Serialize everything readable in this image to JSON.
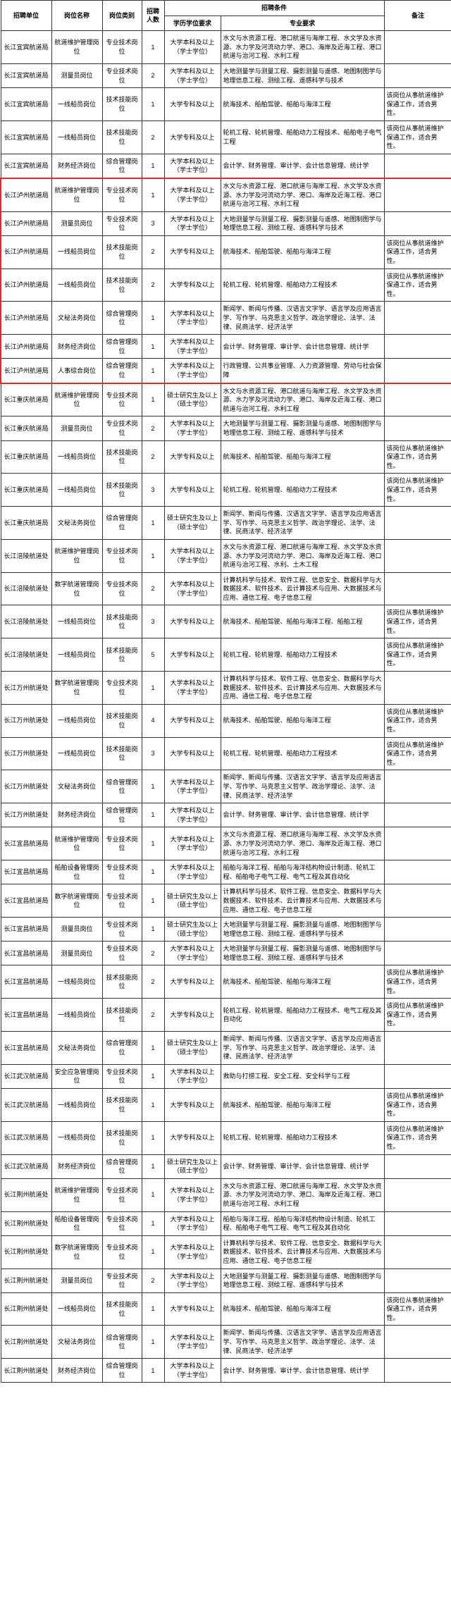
{
  "headers": {
    "unit": "招聘单位",
    "name": "岗位名称",
    "category": "岗位类别",
    "count": "招聘人数",
    "conditions": "招聘条件",
    "edu": "学历学位要求",
    "req": "专业要求",
    "remark": "备注"
  },
  "common": {
    "edu_bachelor": "大学本科及以上（学士学位）",
    "edu_college": "大学专科及以上",
    "edu_master": "硕士研究生及以上（硕士学位）",
    "remark_male": "该岗位从事航道维护保通工作，适合男性。"
  },
  "rows": [
    {
      "unit": "长江宜宾航道局",
      "name": "航道维护管理岗位",
      "cat": "专业技术岗位",
      "count": "1",
      "edu": "bachelor",
      "req": "水文与水资源工程、港口航道与海岸工程、水文学及水资源、水力学及河流动力学、港口、海岸及近海工程、港口航道与治河工程、水利工程",
      "remark": ""
    },
    {
      "unit": "长江宜宾航道局",
      "name": "测量员岗位",
      "cat": "专业技术岗位",
      "count": "2",
      "edu": "bachelor",
      "req": "大地测量学与测量工程、摄影测量与遥感、地图制图学与地理信息工程、测绘工程、遥感科学与技术",
      "remark": ""
    },
    {
      "unit": "长江宜宾航道局",
      "name": "一线船员岗位",
      "cat": "技术技能岗位",
      "count": "1",
      "edu": "college",
      "req": "航海技术、船舶驾驶、船舶与海洋工程",
      "remark": "male"
    },
    {
      "unit": "长江宜宾航道局",
      "name": "一线船员岗位",
      "cat": "技术技能岗位",
      "count": "2",
      "edu": "college",
      "req": "轮机工程、轮机管理、船舶动力工程技术、船舶电子电气工程",
      "remark": "male"
    },
    {
      "unit": "长江宜宾航道局",
      "name": "财务经济岗位",
      "cat": "综合管理岗位",
      "count": "1",
      "edu": "bachelor",
      "req": "会计学、财务管理、审计学、会计信息管理、统计学",
      "remark": ""
    },
    {
      "unit": "长江泸州航道局",
      "name": "航道维护管理岗位",
      "cat": "专业技术岗位",
      "count": "1",
      "edu": "bachelor",
      "req": "水文与水资源工程、港口航道与海岸工程、水文学及水资源、水力学及河流动力学、港口、海岸及近海工程、港口航道与治河工程、水利工程",
      "remark": "",
      "hl": "top"
    },
    {
      "unit": "长江泸州航道局",
      "name": "测量员岗位",
      "cat": "专业技术岗位",
      "count": "3",
      "edu": "bachelor",
      "req": "大地测量学与测量工程、摄影测量与遥感、地图制图学与地理信息工程、测绘工程、遥感科学与技术",
      "remark": "",
      "hl": "mid"
    },
    {
      "unit": "长江泸州航道局",
      "name": "一线船员岗位",
      "cat": "技术技能岗位",
      "count": "2",
      "edu": "college",
      "req": "航海技术、船舶驾驶、船舶与海洋工程",
      "remark": "male",
      "hl": "mid"
    },
    {
      "unit": "长江泸州航道局",
      "name": "一线船员岗位",
      "cat": "技术技能岗位",
      "count": "2",
      "edu": "college",
      "req": "轮机工程、轮机管理、船舶动力工程技术",
      "remark": "male",
      "hl": "mid"
    },
    {
      "unit": "长江泸州航道局",
      "name": "文秘法务岗位",
      "cat": "综合管理岗位",
      "count": "1",
      "edu": "bachelor",
      "req": "新闻学、新闻与传播、汉语言文字学、语言学及应用语言学、写作学、马克思主义哲学、政治学理论、法学、法律、民商法学、经济法学",
      "remark": "",
      "hl": "mid"
    },
    {
      "unit": "长江泸州航道局",
      "name": "财务经济岗位",
      "cat": "综合管理岗位",
      "count": "1",
      "edu": "bachelor",
      "req": "会计学、财务管理、审计学、会计信息管理、统计学",
      "remark": "",
      "hl": "mid"
    },
    {
      "unit": "长江泸州航道局",
      "name": "人事综合岗位",
      "cat": "综合管理岗位",
      "count": "1",
      "edu": "bachelor",
      "req": "行政管理、公共事业管理、人力资源管理、劳动与社会保障",
      "remark": "",
      "hl": "bot"
    },
    {
      "unit": "长江重庆航道局",
      "name": "航道维护管理岗位",
      "cat": "专业技术岗位",
      "count": "1",
      "edu": "master",
      "req": "水文与水资源工程、港口航道与海岸工程、水文学及水资源、水力学及河流动力学、港口、海岸及近海工程、港口航道与治河工程、水利工程",
      "remark": ""
    },
    {
      "unit": "长江重庆航道局",
      "name": "测量员岗位",
      "cat": "专业技术岗位",
      "count": "2",
      "edu": "bachelor",
      "req": "大地测量学与测量工程、摄影测量与遥感、地图制图学与地理信息工程、测绘工程、遥感科学与技术",
      "remark": ""
    },
    {
      "unit": "长江重庆航道局",
      "name": "一线船员岗位",
      "cat": "技术技能岗位",
      "count": "2",
      "edu": "college",
      "req": "航海技术、船舶驾驶、船舶与海洋工程",
      "remark": "male"
    },
    {
      "unit": "长江重庆航道局",
      "name": "一线船员岗位",
      "cat": "技术技能岗位",
      "count": "3",
      "edu": "college",
      "req": "轮机工程、轮机管理、船舶动力工程技术",
      "remark": "male"
    },
    {
      "unit": "长江重庆航道局",
      "name": "文秘法务岗位",
      "cat": "综合管理岗位",
      "count": "1",
      "edu": "master",
      "req": "新闻学、新闻与传播、汉语言文字学、语言学及应用语言学、写作学、马克思主义哲学、政治学理论、法学、法律、民商法学、经济法学",
      "remark": ""
    },
    {
      "unit": "长江涪陵航道处",
      "name": "航道维护管理岗位",
      "cat": "专业技术岗位",
      "count": "1",
      "edu": "bachelor",
      "req": "水文与水资源工程、港口航道与海岸工程、水文学及水资源、水力学及河流动力学、港口、海岸及近海工程、港口航道与治河工程、水利、土木工程",
      "remark": ""
    },
    {
      "unit": "长江涪陵航道处",
      "name": "数字航道管理岗位",
      "cat": "专业技术岗位",
      "count": "2",
      "edu": "bachelor",
      "req": "计算机科学与技术、软件工程、信息安全、数据科学与大数据技术、软件技术、云计算技术与应用、大数据技术与应用、通信工程、电子信息工程",
      "remark": ""
    },
    {
      "unit": "长江涪陵航道处",
      "name": "一线船员岗位",
      "cat": "技术技能岗位",
      "count": "3",
      "edu": "college",
      "req": "航海技术、船舶驾驶、船舶与海洋工程、船舶工程",
      "remark": "male"
    },
    {
      "unit": "长江涪陵航道处",
      "name": "一线船员岗位",
      "cat": "技术技能岗位",
      "count": "5",
      "edu": "college",
      "req": "轮机工程、轮机管理、船舶动力工程技术",
      "remark": "male"
    },
    {
      "unit": "长江万州航道处",
      "name": "数字航道管理岗位",
      "cat": "专业技术岗位",
      "count": "1",
      "edu": "bachelor",
      "req": "计算机科学与技术、软件工程、信息安全、数据科学与大数据技术、软件技术、云计算技术与应用、大数据技术与应用、通信工程、电子信息工程",
      "remark": ""
    },
    {
      "unit": "长江万州航道处",
      "name": "一线船员岗位",
      "cat": "技术技能岗位",
      "count": "4",
      "edu": "college",
      "req": "航海技术、船舶驾驶、船舶与海洋工程",
      "remark": "male"
    },
    {
      "unit": "长江万州航道处",
      "name": "一线船员岗位",
      "cat": "技术技能岗位",
      "count": "3",
      "edu": "college",
      "req": "轮机工程、轮机管理、船舶动力工程技术",
      "remark": "male"
    },
    {
      "unit": "长江万州航道处",
      "name": "文秘法务岗位",
      "cat": "综合管理岗位",
      "count": "1",
      "edu": "bachelor",
      "req": "新闻学、新闻与传播、汉语言文字学、语言学及应用语言学、写作学、马克思主义哲学、政治学理论、法学、法律、民商法学、经济法学",
      "remark": ""
    },
    {
      "unit": "长江万州航道处",
      "name": "财务经济岗位",
      "cat": "综合管理岗位",
      "count": "1",
      "edu": "bachelor",
      "req": "会计学、财务管理、审计学、会计信息管理、统计学",
      "remark": ""
    },
    {
      "unit": "长江宜昌航道局",
      "name": "航道维护管理岗位",
      "cat": "专业技术岗位",
      "count": "1",
      "edu": "bachelor",
      "req": "水文与水资源工程、港口航道与海岸工程、水文学及水资源、水力学及河流动力学、港口、海岸及近海工程、港口航道与治河工程、水利工程",
      "remark": ""
    },
    {
      "unit": "长江宜昌航道局",
      "name": "船舶设备管理岗位",
      "cat": "专业技术岗位",
      "count": "1",
      "edu": "bachelor",
      "req": "船舶与海洋工程、船舶与海洋结构物设计制造、轮机工程、船舶电子电气工程、电气工程及其自动化",
      "remark": ""
    },
    {
      "unit": "长江宜昌航道局",
      "name": "数字航道管理岗位",
      "cat": "专业技术岗位",
      "count": "1",
      "edu": "master",
      "req": "计算机科学与技术、软件工程、信息安全、数据科学与大数据技术、软件技术、云计算技术与应用、大数据技术与应用、通信工程、电子信息工程",
      "remark": ""
    },
    {
      "unit": "长江宜昌航道局",
      "name": "测量员岗位",
      "cat": "专业技术岗位",
      "count": "1",
      "edu": "master",
      "req": "大地测量学与测量工程、摄影测量与遥感、地图制图学与地理信息工程、测绘工程、遥感科学与技术",
      "remark": ""
    },
    {
      "unit": "长江宜昌航道局",
      "name": "测量员岗位",
      "cat": "专业技术岗位",
      "count": "2",
      "edu": "bachelor",
      "req": "大地测量学与测量工程、摄影测量与遥感、地图制图学与地理信息工程、测绘工程、遥感科学与技术",
      "remark": ""
    },
    {
      "unit": "长江宜昌航道局",
      "name": "一线船员岗位",
      "cat": "技术技能岗位",
      "count": "2",
      "edu": "college",
      "req": "航海技术、船舶驾驶、船舶与海洋工程",
      "remark": "male"
    },
    {
      "unit": "长江宜昌航道局",
      "name": "一线船员岗位",
      "cat": "技术技能岗位",
      "count": "2",
      "edu": "college",
      "req": "轮机工程、轮机管理、船舶动力工程技术、电气工程及其自动化",
      "remark": "male"
    },
    {
      "unit": "长江宜昌航道局",
      "name": "文秘法务岗位",
      "cat": "综合管理岗位",
      "count": "1",
      "edu": "master",
      "req": "新闻学、新闻与传播、汉语言文字学、语言学及应用语言学、写作学、马克思主义哲学、政治学理论、法学、法律、民商法学、经济法学",
      "remark": ""
    },
    {
      "unit": "长江武汉航道局",
      "name": "安全应急管理岗位",
      "cat": "专业技术岗位",
      "count": "1",
      "edu": "bachelor",
      "req": "救助与打捞工程、安全工程、安全科学与工程",
      "remark": ""
    },
    {
      "unit": "长江武汉航道局",
      "name": "一线船员岗位",
      "cat": "技术技能岗位",
      "count": "1",
      "edu": "college",
      "req": "航海技术、船舶驾驶、船舶与海洋工程",
      "remark": "male"
    },
    {
      "unit": "长江武汉航道局",
      "name": "一线船员岗位",
      "cat": "技术技能岗位",
      "count": "1",
      "edu": "college",
      "req": "轮机工程、轮机管理、船舶动力工程技术",
      "remark": "male"
    },
    {
      "unit": "长江武汉航道局",
      "name": "财务经济岗位",
      "cat": "综合管理岗位",
      "count": "1",
      "edu": "master",
      "req": "会计学、财务管理、审计学、会计信息管理、统计学",
      "remark": ""
    },
    {
      "unit": "长江荆州航道处",
      "name": "航道维护管理岗位",
      "cat": "专业技术岗位",
      "count": "1",
      "edu": "bachelor",
      "req": "水文与水资源工程、港口航道与海岸工程、水文学及水资源、水力学及河流动力学、港口、海岸及近海工程、港口航道与治河工程、水利工程",
      "remark": ""
    },
    {
      "unit": "长江荆州航道处",
      "name": "船舶设备管理岗位",
      "cat": "专业技术岗位",
      "count": "1",
      "edu": "bachelor",
      "req": "船舶与海洋工程、船舶与海洋结构物设计制造、轮机工程、船舶电子电气工程、电气工程及其自动化",
      "remark": ""
    },
    {
      "unit": "长江荆州航道处",
      "name": "数字航道管理岗位",
      "cat": "专业技术岗位",
      "count": "1",
      "edu": "bachelor",
      "req": "计算机科学与技术、软件工程、信息安全、数据科学与大数据技术、软件技术、云计算技术与应用、大数据技术与应用、通信工程、电子信息工程",
      "remark": ""
    },
    {
      "unit": "长江荆州航道处",
      "name": "测量员岗位",
      "cat": "专业技术岗位",
      "count": "2",
      "edu": "bachelor",
      "req": "大地测量学与测量工程、摄影测量与遥感、地图制图学与地理信息工程、测绘工程、遥感科学与技术",
      "remark": ""
    },
    {
      "unit": "长江荆州航道处",
      "name": "一线船员岗位",
      "cat": "技术技能岗位",
      "count": "1",
      "edu": "college",
      "req": "航海技术、船舶驾驶、船舶与海洋工程",
      "remark": "male"
    },
    {
      "unit": "长江荆州航道处",
      "name": "文秘法务岗位",
      "cat": "综合管理岗位",
      "count": "1",
      "edu": "bachelor",
      "req": "新闻学、新闻与传播、汉语言文字学、语言学及应用语言学、写作学、马克思主义哲学、政治学理论、法学、法律、民商法学、经济法学",
      "remark": ""
    },
    {
      "unit": "长江荆州航道处",
      "name": "财务经济岗位",
      "cat": "综合管理岗位",
      "count": "1",
      "edu": "bachelor",
      "req": "会计学、财务管理、审计学、会计信息管理、统计学",
      "remark": ""
    }
  ]
}
